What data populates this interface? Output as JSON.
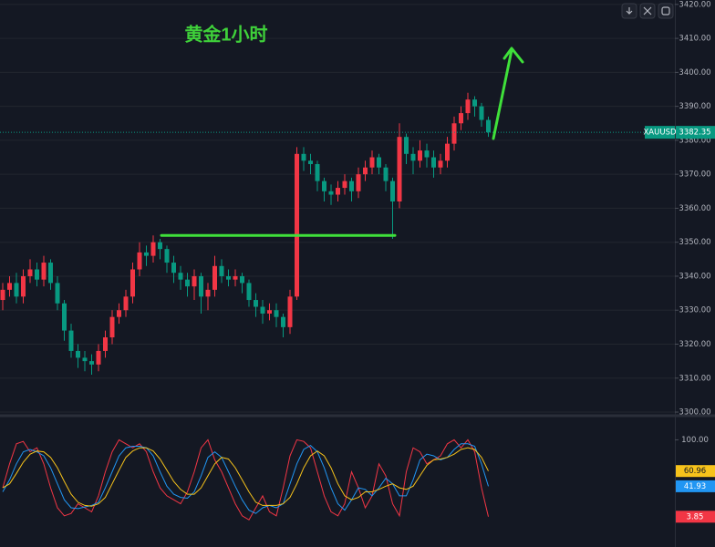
{
  "chart_data": [
    {
      "type": "candlestick",
      "title": "黄金1小时",
      "symbol": "XAUUSD",
      "up_color": "#f23645",
      "down_color": "#089981",
      "open": [
        3333,
        3336,
        3338,
        3334,
        3340,
        3342,
        3339,
        3344,
        3338,
        3332,
        3324,
        3318,
        3316,
        3315,
        3314,
        3318,
        3322,
        3328,
        3330,
        3334,
        3342,
        3347,
        3346,
        3350,
        3348,
        3344,
        3341,
        3339,
        3337,
        3340,
        3334,
        3336,
        3343,
        3340,
        3339,
        3340,
        3338,
        3333,
        3331,
        3329,
        3330,
        3328,
        3325,
        3334,
        3376,
        3374,
        3373,
        3368,
        3365,
        3364,
        3366,
        3368,
        3365,
        3370,
        3372,
        3375,
        3372,
        3368,
        3362,
        3381,
        3376,
        3374,
        3377,
        3375,
        3372,
        3374,
        3379,
        3385,
        3388,
        3392,
        3390,
        3386
      ],
      "high": [
        3338,
        3340,
        3341,
        3342,
        3345,
        3344,
        3346,
        3345,
        3340,
        3333,
        3326,
        3320,
        3318,
        3317,
        3320,
        3324,
        3330,
        3332,
        3336,
        3344,
        3350,
        3349,
        3352,
        3351,
        3349,
        3346,
        3343,
        3341,
        3342,
        3341,
        3338,
        3346,
        3345,
        3342,
        3342,
        3341,
        3339,
        3335,
        3333,
        3332,
        3332,
        3329,
        3336,
        3378,
        3378,
        3376,
        3374,
        3369,
        3367,
        3368,
        3370,
        3369,
        3372,
        3374,
        3377,
        3376,
        3373,
        3369,
        3385,
        3382,
        3378,
        3380,
        3379,
        3377,
        3376,
        3381,
        3387,
        3390,
        3394,
        3393,
        3391,
        3387
      ],
      "low": [
        3330,
        3334,
        3332,
        3332,
        3338,
        3337,
        3337,
        3336,
        3330,
        3321,
        3316,
        3313,
        3312,
        3311,
        3312,
        3316,
        3320,
        3326,
        3328,
        3332,
        3340,
        3343,
        3344,
        3345,
        3341,
        3338,
        3336,
        3334,
        3333,
        3329,
        3330,
        3334,
        3338,
        3337,
        3337,
        3335,
        3331,
        3328,
        3326,
        3327,
        3325,
        3322,
        3323,
        3333,
        3371,
        3370,
        3365,
        3362,
        3361,
        3362,
        3364,
        3362,
        3363,
        3368,
        3370,
        3370,
        3365,
        3351,
        3360,
        3373,
        3370,
        3372,
        3372,
        3369,
        3370,
        3372,
        3377,
        3383,
        3386,
        3387,
        3384,
        3381
      ],
      "close": [
        3336,
        3338,
        3334,
        3340,
        3342,
        3339,
        3344,
        3338,
        3332,
        3324,
        3318,
        3316,
        3315,
        3314,
        3318,
        3322,
        3328,
        3330,
        3334,
        3342,
        3347,
        3346,
        3350,
        3348,
        3344,
        3341,
        3339,
        3337,
        3340,
        3334,
        3336,
        3343,
        3340,
        3339,
        3340,
        3338,
        3333,
        3331,
        3329,
        3330,
        3328,
        3325,
        3334,
        3376,
        3374,
        3373,
        3368,
        3365,
        3364,
        3366,
        3368,
        3365,
        3370,
        3372,
        3375,
        3372,
        3368,
        3362,
        3381,
        3376,
        3374,
        3377,
        3375,
        3372,
        3374,
        3379,
        3385,
        3388,
        3392,
        3390,
        3386,
        3382.35
      ],
      "hline": 3352,
      "hline_color": "#3fe03a",
      "ylim": [
        3299.2,
        3421.3
      ],
      "yticks": [
        {
          "value": 3300,
          "label": "3300.00"
        },
        {
          "value": 3310,
          "label": "3310.00"
        },
        {
          "value": 3320,
          "label": "3320.00"
        },
        {
          "value": 3330,
          "label": "3330.00"
        },
        {
          "value": 3340,
          "label": "3340.00"
        },
        {
          "value": 3350,
          "label": "3350.00"
        },
        {
          "value": 3360,
          "label": "3360.00"
        },
        {
          "value": 3370,
          "label": "3370.00"
        },
        {
          "value": 3380,
          "label": "3380.00"
        },
        {
          "value": 3390,
          "label": "3390.00"
        },
        {
          "value": 3400,
          "label": "3400.00"
        },
        {
          "value": 3410,
          "label": "3410.00"
        },
        {
          "value": 3420,
          "label": "3420.00"
        }
      ],
      "grid": true
    },
    {
      "type": "line",
      "series": [
        {
          "color": "#f23645",
          "values": [
            40,
            70,
            95,
            98,
            85,
            90,
            70,
            40,
            15,
            5,
            8,
            20,
            15,
            10,
            30,
            60,
            85,
            100,
            95,
            90,
            95,
            85,
            60,
            40,
            30,
            25,
            20,
            35,
            60,
            90,
            100,
            75,
            60,
            40,
            20,
            5,
            0,
            15,
            30,
            10,
            5,
            40,
            80,
            100,
            98,
            90,
            60,
            30,
            10,
            5,
            20,
            60,
            40,
            15,
            30,
            70,
            55,
            20,
            5,
            60,
            90,
            85,
            70,
            75,
            80,
            95,
            100,
            90,
            100,
            85,
            40,
            3.85
          ]
        },
        {
          "color": "#2196f3",
          "values": [
            35,
            50,
            70,
            85,
            88,
            85,
            80,
            65,
            45,
            25,
            15,
            14,
            16,
            18,
            22,
            40,
            60,
            80,
            90,
            92,
            92,
            90,
            80,
            60,
            42,
            32,
            28,
            27,
            35,
            55,
            78,
            85,
            78,
            60,
            42,
            25,
            12,
            8,
            15,
            18,
            15,
            20,
            45,
            70,
            88,
            93,
            85,
            65,
            40,
            20,
            12,
            25,
            40,
            38,
            30,
            40,
            52,
            45,
            30,
            30,
            50,
            75,
            82,
            80,
            75,
            78,
            88,
            95,
            95,
            92,
            70,
            41.93
          ]
        },
        {
          "color": "#f7c31b",
          "values": [
            40,
            45,
            58,
            72,
            82,
            86,
            85,
            78,
            65,
            48,
            32,
            22,
            18,
            17,
            20,
            28,
            45,
            62,
            78,
            86,
            90,
            90,
            86,
            76,
            62,
            48,
            38,
            32,
            32,
            40,
            55,
            70,
            78,
            76,
            65,
            50,
            35,
            22,
            18,
            18,
            18,
            20,
            28,
            45,
            65,
            80,
            86,
            80,
            65,
            45,
            30,
            25,
            28,
            35,
            35,
            38,
            42,
            45,
            40,
            38,
            42,
            55,
            68,
            75,
            76,
            78,
            82,
            88,
            90,
            88,
            78,
            60.96
          ]
        }
      ],
      "ylim": [
        -34,
        129
      ],
      "yticks": [
        {
          "value": 100,
          "label": "100.00"
        }
      ],
      "grid": false
    }
  ]
}
